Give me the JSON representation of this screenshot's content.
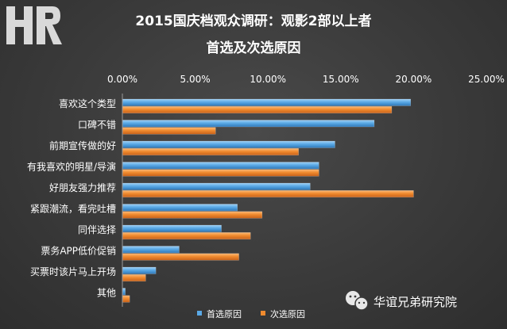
{
  "chart_data": {
    "type": "bar",
    "orientation": "horizontal",
    "title": "2015国庆档观众调研：观影2部以上者",
    "subtitle": "首选及次选原因",
    "categories": [
      "喜欢这个类型",
      "口碑不错",
      "前期宣传做的好",
      "有我喜欢的明星/导演",
      "好朋友强力推荐",
      "紧跟潮流，看完吐槽",
      "同伴选择",
      "票务APP低价促销",
      "买票时该片马上开场",
      "其他"
    ],
    "series": [
      {
        "name": "首选原因",
        "color": "#5aa9e6",
        "values": [
          19.8,
          17.3,
          14.6,
          13.5,
          12.9,
          7.9,
          6.8,
          3.9,
          2.3,
          0.2
        ]
      },
      {
        "name": "次选原因",
        "color": "#f08a2e",
        "values": [
          18.5,
          6.4,
          12.1,
          13.5,
          20.0,
          9.6,
          8.8,
          8.0,
          1.6,
          0.5
        ]
      }
    ],
    "xlim": [
      0,
      25
    ],
    "xticks": [
      "0.00%",
      "5.00%",
      "10.00%",
      "15.00%",
      "20.00%",
      "25.00%"
    ],
    "legend_position": "bottom",
    "grid": false
  },
  "logo": {
    "text": "HR"
  },
  "watermark": {
    "icon": "wechat-icon",
    "text": "华谊兄弟研究院"
  }
}
